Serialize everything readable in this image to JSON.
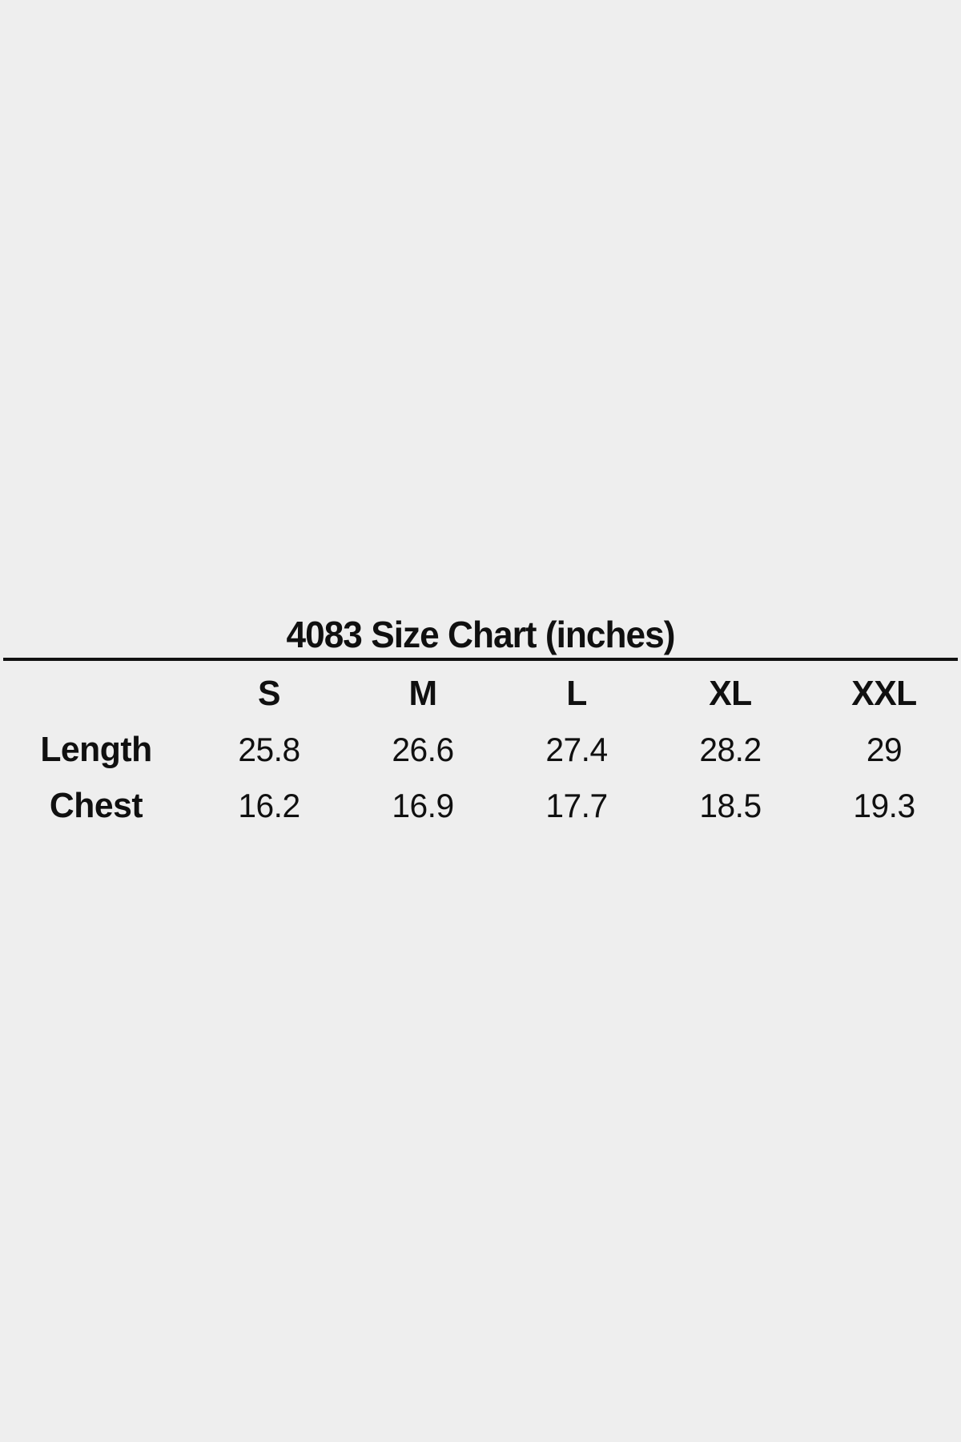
{
  "page": {
    "background_color": "#eeeeee",
    "text_color": "#101010",
    "divider_color": "#111111"
  },
  "chart_data": {
    "type": "table",
    "title": "4083 Size Chart (inches)",
    "columns": [
      "S",
      "M",
      "L",
      "XL",
      "XXL"
    ],
    "rows": [
      {
        "label": "Length",
        "values": [
          25.8,
          26.6,
          27.4,
          28.2,
          29
        ]
      },
      {
        "label": "Chest",
        "values": [
          16.2,
          16.9,
          17.7,
          18.5,
          19.3
        ]
      }
    ],
    "layout_hints": {
      "title_position": "top-center",
      "divider": "full-width horizontal rule under title",
      "first_column": "row labels, bold",
      "units": "inches"
    }
  }
}
